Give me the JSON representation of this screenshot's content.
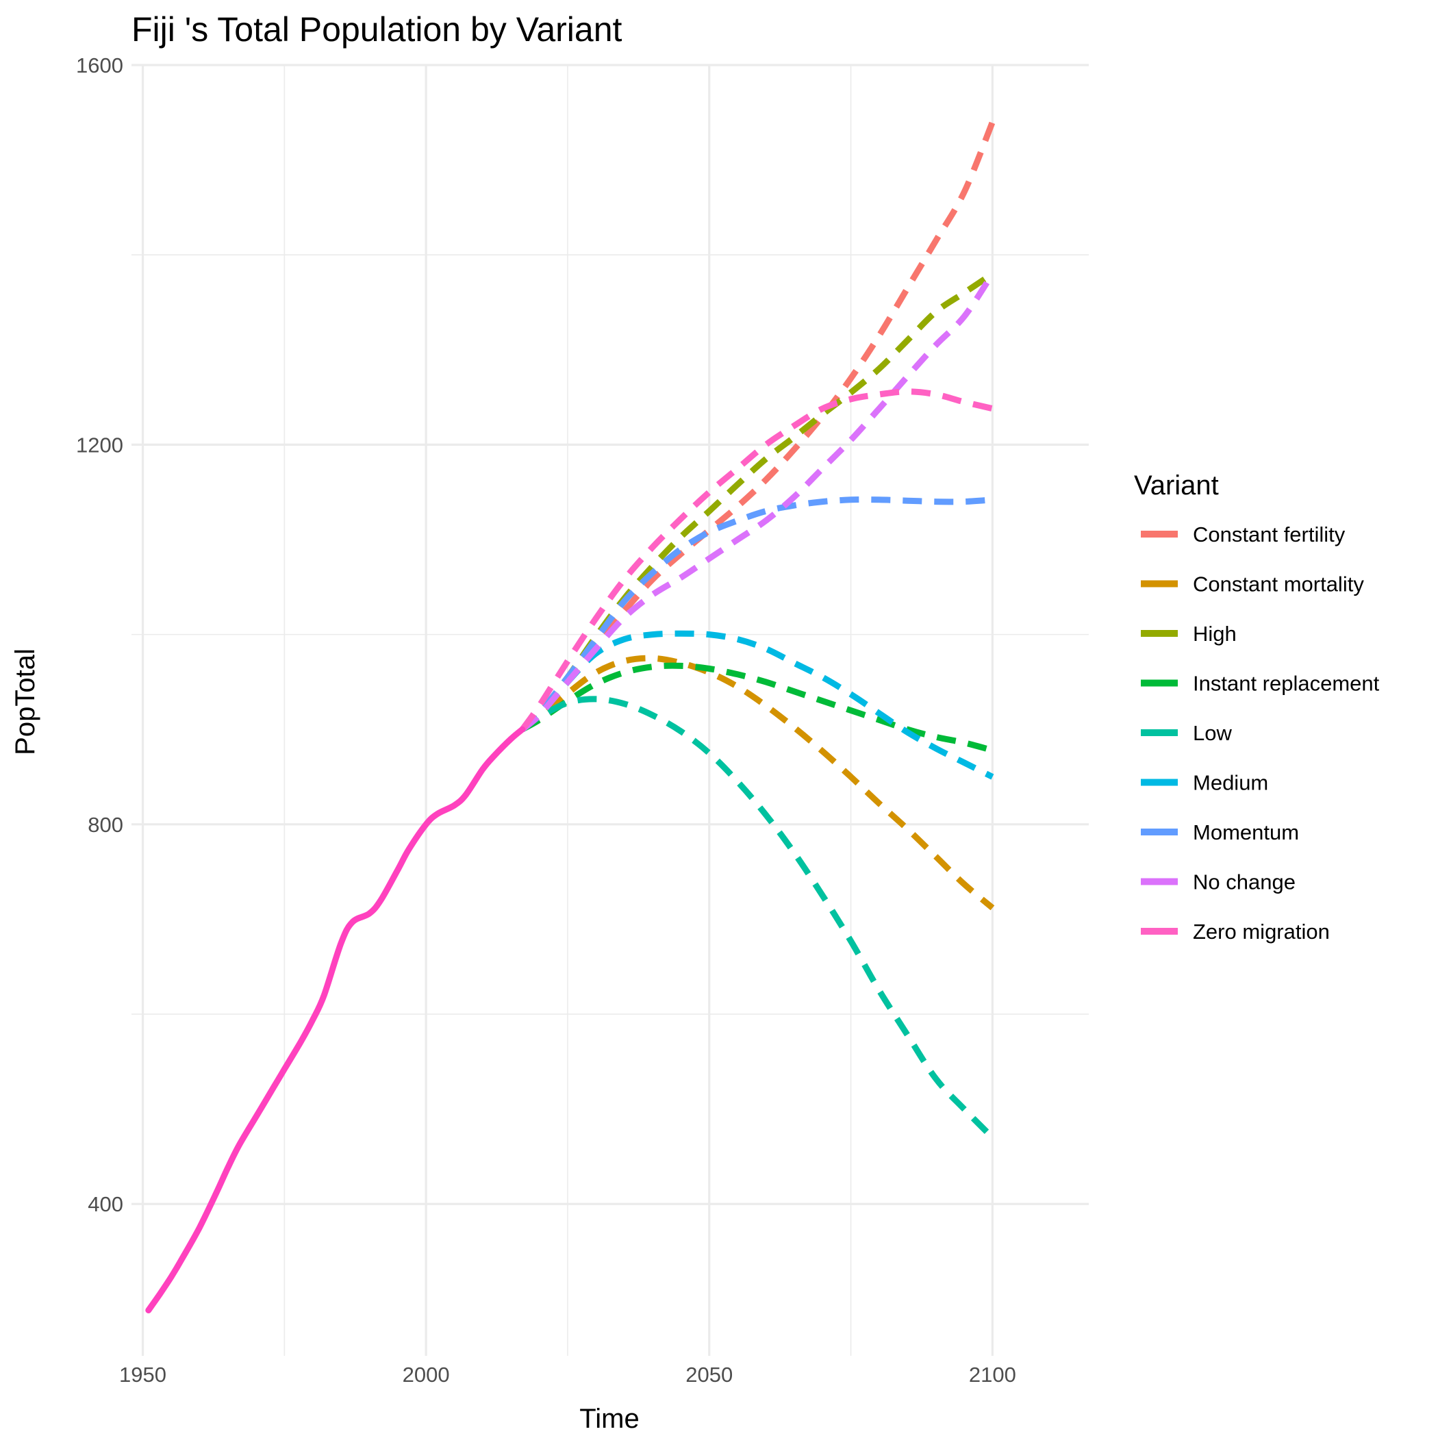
{
  "chart_data": {
    "type": "line",
    "title": "Fiji 's Total Population by Variant",
    "xlabel": "Time",
    "ylabel": "PopTotal",
    "xlim": [
      1948,
      2117
    ],
    "ylim": [
      240,
      1600
    ],
    "x_ticks": [
      1950,
      2000,
      2050,
      2100
    ],
    "y_ticks": [
      400,
      800,
      1200,
      1600
    ],
    "x_tick_labels": [
      "1950",
      "2000",
      "2050",
      "2100"
    ],
    "y_tick_labels": [
      "400",
      "800",
      "1200",
      "1600"
    ],
    "grid": true,
    "legend_title": "Variant",
    "legend_position": "right",
    "historical": {
      "name": "Zero migration",
      "color": "#FF41BE",
      "x": [
        1951,
        1953,
        1955,
        1957,
        1960,
        1963,
        1965,
        1967,
        1970,
        1973,
        1975,
        1978,
        1980,
        1982,
        1985,
        1987,
        1990,
        1992,
        1995,
        1997,
        2000,
        2002,
        2005,
        2007,
        2010,
        2012,
        2015,
        2017
      ],
      "y": [
        288,
        305,
        323,
        343,
        375,
        412,
        438,
        462,
        492,
        522,
        542,
        572,
        594,
        620,
        675,
        697,
        706,
        720,
        752,
        774,
        800,
        811,
        820,
        831,
        858,
        872,
        890,
        900
      ]
    },
    "series": [
      {
        "name": "Constant fertility",
        "color": "#F8766D",
        "x": [
          2017,
          2020,
          2025,
          2030,
          2035,
          2040,
          2045,
          2050,
          2055,
          2060,
          2065,
          2070,
          2075,
          2080,
          2085,
          2090,
          2095,
          2100
        ],
        "y": [
          900,
          916,
          950,
          990,
          1025,
          1058,
          1085,
          1110,
          1135,
          1163,
          1195,
          1230,
          1270,
          1315,
          1365,
          1415,
          1466,
          1540
        ]
      },
      {
        "name": "Constant mortality",
        "color": "#D39200",
        "x": [
          2017,
          2020,
          2025,
          2030,
          2035,
          2040,
          2045,
          2050,
          2055,
          2060,
          2065,
          2070,
          2075,
          2080,
          2085,
          2090,
          2095,
          2100
        ],
        "y": [
          900,
          912,
          938,
          960,
          972,
          975,
          970,
          960,
          945,
          925,
          902,
          877,
          850,
          822,
          795,
          766,
          737,
          712
        ]
      },
      {
        "name": "High",
        "color": "#93AA00",
        "x": [
          2017,
          2020,
          2025,
          2030,
          2035,
          2040,
          2045,
          2050,
          2055,
          2060,
          2065,
          2070,
          2075,
          2080,
          2085,
          2090,
          2095,
          2100
        ],
        "y": [
          900,
          917,
          955,
          998,
          1038,
          1072,
          1103,
          1130,
          1158,
          1185,
          1208,
          1232,
          1255,
          1280,
          1310,
          1340,
          1360,
          1380
        ]
      },
      {
        "name": "Instant replacement",
        "color": "#00BA38",
        "x": [
          2017,
          2020,
          2025,
          2030,
          2035,
          2040,
          2045,
          2050,
          2055,
          2060,
          2065,
          2070,
          2075,
          2080,
          2085,
          2090,
          2095,
          2100
        ],
        "y": [
          900,
          910,
          930,
          948,
          960,
          966,
          967,
          964,
          958,
          950,
          940,
          930,
          920,
          910,
          900,
          892,
          886,
          878
        ]
      },
      {
        "name": "Low",
        "color": "#00C19F",
        "x": [
          2017,
          2020,
          2025,
          2030,
          2035,
          2040,
          2045,
          2050,
          2055,
          2060,
          2065,
          2070,
          2075,
          2080,
          2085,
          2090,
          2095,
          2100
        ],
        "y": [
          900,
          913,
          928,
          932,
          927,
          915,
          898,
          875,
          845,
          810,
          770,
          725,
          677,
          625,
          578,
          532,
          500,
          470
        ]
      },
      {
        "name": "Medium",
        "color": "#00B9E3",
        "x": [
          2017,
          2020,
          2025,
          2030,
          2035,
          2040,
          2045,
          2050,
          2055,
          2060,
          2065,
          2070,
          2075,
          2080,
          2085,
          2090,
          2095,
          2100
        ],
        "y": [
          900,
          915,
          950,
          980,
          995,
          1000,
          1001,
          1000,
          995,
          985,
          970,
          955,
          937,
          917,
          897,
          880,
          865,
          850
        ]
      },
      {
        "name": "Momentum",
        "color": "#619CFF",
        "x": [
          2017,
          2020,
          2025,
          2030,
          2035,
          2040,
          2045,
          2050,
          2055,
          2060,
          2065,
          2070,
          2075,
          2080,
          2085,
          2090,
          2095,
          2100
        ],
        "y": [
          900,
          917,
          955,
          995,
          1035,
          1065,
          1090,
          1108,
          1120,
          1130,
          1136,
          1140,
          1142,
          1142,
          1141,
          1140,
          1140,
          1142
        ]
      },
      {
        "name": "No change",
        "color": "#DB72FB",
        "x": [
          2017,
          2020,
          2025,
          2030,
          2035,
          2040,
          2045,
          2050,
          2055,
          2060,
          2065,
          2070,
          2075,
          2080,
          2085,
          2090,
          2095,
          2100
        ],
        "y": [
          900,
          915,
          950,
          985,
          1018,
          1042,
          1060,
          1080,
          1100,
          1120,
          1145,
          1175,
          1205,
          1238,
          1272,
          1305,
          1335,
          1380
        ]
      },
      {
        "name": "Zero migration",
        "color": "#FF61C3",
        "x": [
          2017,
          2020,
          2025,
          2030,
          2035,
          2040,
          2045,
          2050,
          2055,
          2060,
          2065,
          2070,
          2075,
          2080,
          2085,
          2090,
          2095,
          2100
        ],
        "y": [
          900,
          925,
          972,
          1017,
          1058,
          1092,
          1122,
          1150,
          1175,
          1200,
          1220,
          1238,
          1248,
          1253,
          1256,
          1253,
          1245,
          1238
        ]
      }
    ],
    "legend": [
      {
        "name": "Constant fertility",
        "color": "#F8766D"
      },
      {
        "name": "Constant mortality",
        "color": "#D39200"
      },
      {
        "name": "High",
        "color": "#93AA00"
      },
      {
        "name": "Instant replacement",
        "color": "#00BA38"
      },
      {
        "name": "Low",
        "color": "#00C19F"
      },
      {
        "name": "Medium",
        "color": "#00B9E3"
      },
      {
        "name": "Momentum",
        "color": "#619CFF"
      },
      {
        "name": "No change",
        "color": "#DB72FB"
      },
      {
        "name": "Zero migration",
        "color": "#FF61C3"
      }
    ]
  }
}
